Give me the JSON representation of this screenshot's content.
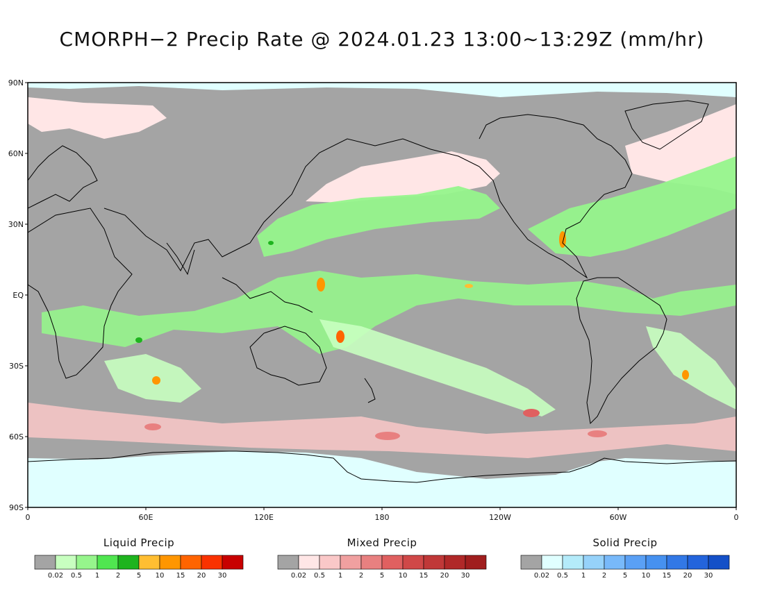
{
  "title": "CMORPH−2 Precip Rate @ 2024.01.23 13:00∼13:29Z (mm/hr)",
  "map": {
    "projection": "equirectangular",
    "lon_range": [
      0,
      360
    ],
    "lat_range": [
      -90,
      90
    ],
    "no_precip_color": "#a4a4a4",
    "land_outline_color": "#000000",
    "y_ticks": [
      {
        "label": "90N",
        "lat": 90
      },
      {
        "label": "60N",
        "lat": 60
      },
      {
        "label": "30N",
        "lat": 30
      },
      {
        "label": "EQ",
        "lat": 0
      },
      {
        "label": "30S",
        "lat": -30
      },
      {
        "label": "60S",
        "lat": -60
      },
      {
        "label": "90S",
        "lat": -90
      }
    ],
    "x_ticks": [
      {
        "label": "0",
        "lon": 0
      },
      {
        "label": "60E",
        "lon": 60
      },
      {
        "label": "120E",
        "lon": 120
      },
      {
        "label": "180",
        "lon": 180
      },
      {
        "label": "120W",
        "lon": 240
      },
      {
        "label": "60W",
        "lon": 300
      },
      {
        "label": "0",
        "lon": 360
      }
    ]
  },
  "legends": [
    {
      "title": "Liquid Precip",
      "colors": [
        "#a4a4a4",
        "#c8ffc0",
        "#96f58c",
        "#50e650",
        "#1eb41e",
        "#ffbe32",
        "#ff9600",
        "#ff6400",
        "#fa3200",
        "#c80000"
      ],
      "ticks": [
        "0.02",
        "0.5",
        "1",
        "2",
        "5",
        "10",
        "15",
        "20",
        "30"
      ]
    },
    {
      "title": "Mixed Precip",
      "colors": [
        "#a4a4a4",
        "#ffe6e6",
        "#fac8c8",
        "#f0a0a0",
        "#e88080",
        "#e06060",
        "#d04848",
        "#c03838",
        "#b02828",
        "#a01e1e"
      ],
      "ticks": [
        "0.02",
        "0.5",
        "1",
        "2",
        "5",
        "10",
        "15",
        "20",
        "30"
      ]
    },
    {
      "title": "Solid Precip",
      "colors": [
        "#a4a4a4",
        "#e0ffff",
        "#b4ebfa",
        "#96d2fa",
        "#78b9fa",
        "#5aa0f5",
        "#4691f0",
        "#3278e6",
        "#2364dc",
        "#1450c8"
      ],
      "ticks": [
        "0.02",
        "0.5",
        "1",
        "2",
        "5",
        "10",
        "15",
        "20",
        "30"
      ]
    }
  ]
}
